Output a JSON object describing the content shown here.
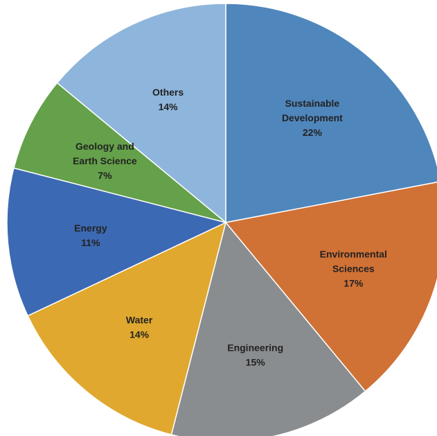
{
  "chart_data": {
    "type": "pie",
    "title": "",
    "slices": [
      {
        "label": [
          "Sustainable",
          "Development"
        ],
        "value": 22,
        "value_label": "22%",
        "color": "#4F86BC"
      },
      {
        "label": [
          "Environmental",
          "Sciences"
        ],
        "value": 17,
        "value_label": "17%",
        "color": "#D07135"
      },
      {
        "label": [
          "Engineering"
        ],
        "value": 15,
        "value_label": "15%",
        "color": "#8A8D8F"
      },
      {
        "label": [
          "Water"
        ],
        "value": 14,
        "value_label": "14%",
        "color": "#E0A82E"
      },
      {
        "label": [
          "Energy"
        ],
        "value": 11,
        "value_label": "11%",
        "color": "#3C69B3"
      },
      {
        "label": [
          "Geology and",
          "Earth Science"
        ],
        "value": 7,
        "value_label": "7%",
        "color": "#64A14A"
      },
      {
        "label": [
          "Others"
        ],
        "value": 14,
        "value_label": "14%",
        "color": "#8EB5DC"
      }
    ]
  }
}
